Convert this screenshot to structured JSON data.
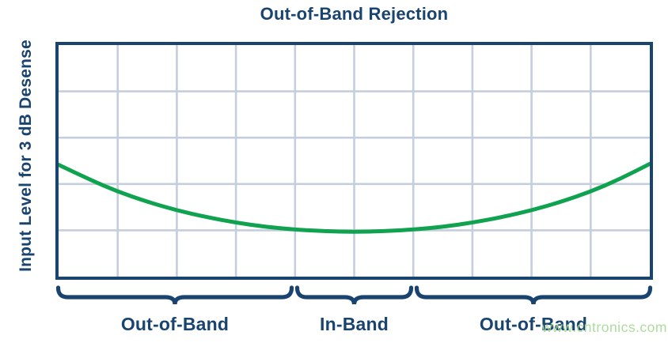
{
  "chart_data": {
    "type": "line",
    "title": "Out-of-Band Rejection",
    "xlabel": "",
    "ylabel": "Input Level for 3 dB Desense",
    "axes": {
      "x_tick_labels": "none",
      "y_tick_labels": "none"
    },
    "grid": {
      "visible": true,
      "columns": 10,
      "rows": 5,
      "color": "#C4CEDC"
    },
    "point_units": "normalized fractions of plot area (x: 0=left to 1=right, y: 0=top to 1=bottom); higher curve position = higher input level required for 3 dB desense",
    "series": [
      {
        "name": "Input level for 3 dB desense",
        "color": "#0FA24F",
        "points": [
          [
            0.0,
            0.517
          ],
          [
            0.05,
            0.578
          ],
          [
            0.1,
            0.633
          ],
          [
            0.15,
            0.677
          ],
          [
            0.2,
            0.714
          ],
          [
            0.25,
            0.743
          ],
          [
            0.3,
            0.767
          ],
          [
            0.35,
            0.785
          ],
          [
            0.4,
            0.797
          ],
          [
            0.45,
            0.804
          ],
          [
            0.5,
            0.807
          ],
          [
            0.55,
            0.804
          ],
          [
            0.6,
            0.797
          ],
          [
            0.65,
            0.785
          ],
          [
            0.7,
            0.767
          ],
          [
            0.75,
            0.743
          ],
          [
            0.8,
            0.714
          ],
          [
            0.85,
            0.677
          ],
          [
            0.9,
            0.633
          ],
          [
            0.95,
            0.578
          ],
          [
            1.0,
            0.513
          ]
        ]
      }
    ],
    "regions": [
      {
        "label": "Out-of-Band",
        "start": 0.0,
        "end": 0.4
      },
      {
        "label": "In-Band",
        "start": 0.4,
        "end": 0.6
      },
      {
        "label": "Out-of-Band",
        "start": 0.6,
        "end": 1.0
      }
    ],
    "legend": "none"
  },
  "colors": {
    "navy": "#1A4470",
    "grid": "#C4CEDC",
    "curve_green": "#0FA24F",
    "watermark_green": "#A9DB99",
    "background": "#FFFFFF"
  },
  "watermark": {
    "text": "www.cntronics.com"
  }
}
